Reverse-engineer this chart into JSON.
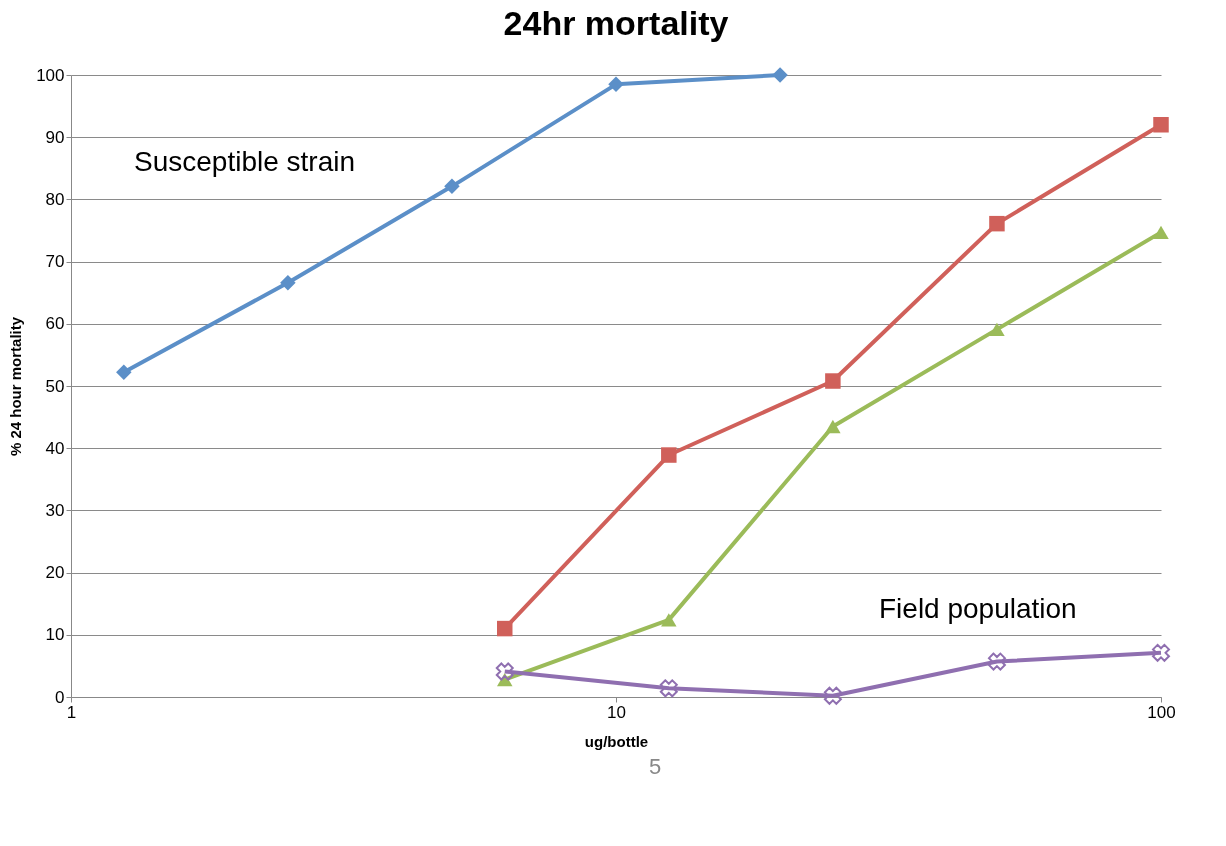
{
  "chart_data": {
    "type": "line",
    "title": "24hr mortality",
    "xlabel": "ug/bottle",
    "ylabel": "% 24 hour mortality",
    "log": "x",
    "xlim": [
      1,
      100
    ],
    "xticks": [
      1,
      10,
      100
    ],
    "ylim": [
      0,
      100
    ],
    "yticks": [
      0,
      10,
      20,
      30,
      40,
      50,
      60,
      70,
      80,
      90,
      100
    ],
    "grid": "y",
    "legend": false,
    "series": [
      {
        "color": "#5b8fc8",
        "marker": "diamond",
        "x": [
          1.25,
          2.5,
          5,
          10,
          20
        ],
        "values": [
          52.2,
          66.6,
          82.1,
          98.5,
          100
        ]
      },
      {
        "color": "#d0605a",
        "marker": "square",
        "x": [
          6.25,
          12.5,
          25,
          50,
          100
        ],
        "values": [
          11,
          38.9,
          50.8,
          76.1,
          92
        ]
      },
      {
        "color": "#9bbb59",
        "marker": "triangle",
        "x": [
          6.25,
          12.5,
          25,
          50,
          100
        ],
        "values": [
          2.8,
          12.4,
          43.5,
          59.1,
          74.7
        ]
      },
      {
        "color": "#8f6fb0",
        "marker": "cross",
        "x": [
          6.25,
          12.5,
          25,
          50,
          100
        ],
        "values": [
          4.1,
          1.4,
          0.2,
          5.7,
          7.1
        ]
      }
    ],
    "annotations": [
      "Susceptible strain",
      "Field population",
      "5"
    ]
  }
}
